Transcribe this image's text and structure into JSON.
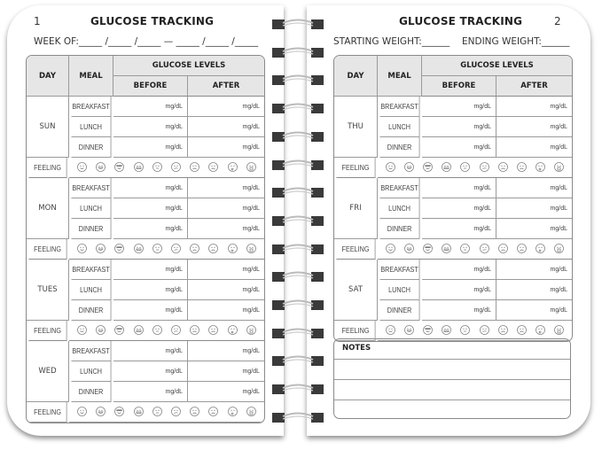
{
  "left_page": {
    "page_number": "1",
    "title": "GLUCOSE TRACKING",
    "subtitle": "WEEK OF:_____ /_____ /_____ — _____ /_____ /_____",
    "days": [
      "SUN",
      "MON",
      "TUES",
      "WED"
    ]
  },
  "right_page": {
    "page_number": "2",
    "title": "GLUCOSE TRACKING",
    "starting_weight": "STARTING WEIGHT:______",
    "ending_weight": "ENDING WEIGHT:______",
    "days": [
      "THU",
      "FRI",
      "SAT"
    ],
    "notes_label": "NOTES"
  },
  "table": {
    "day_header": "DAY",
    "meal_header": "MEAL",
    "glucose_header": "GLUCOSE LEVELS",
    "before_header": "BEFORE",
    "after_header": "AFTER",
    "meals": [
      "BREAKFAST",
      "LUNCH",
      "DINNER"
    ],
    "unit": "mg/dL",
    "feeling_label": "FEELING"
  },
  "feeling_icons": [
    "smile-icon",
    "grin-icon",
    "cool-sunglasses-icon",
    "big-grin-icon",
    "neutral-icon",
    "confused-icon",
    "sad-icon",
    "frown-icon",
    "surprised-icon",
    "crying-icon"
  ],
  "colors": {
    "header_bg": "#e6e6e6",
    "border": "#8a8a8a",
    "ring": "#444444"
  }
}
